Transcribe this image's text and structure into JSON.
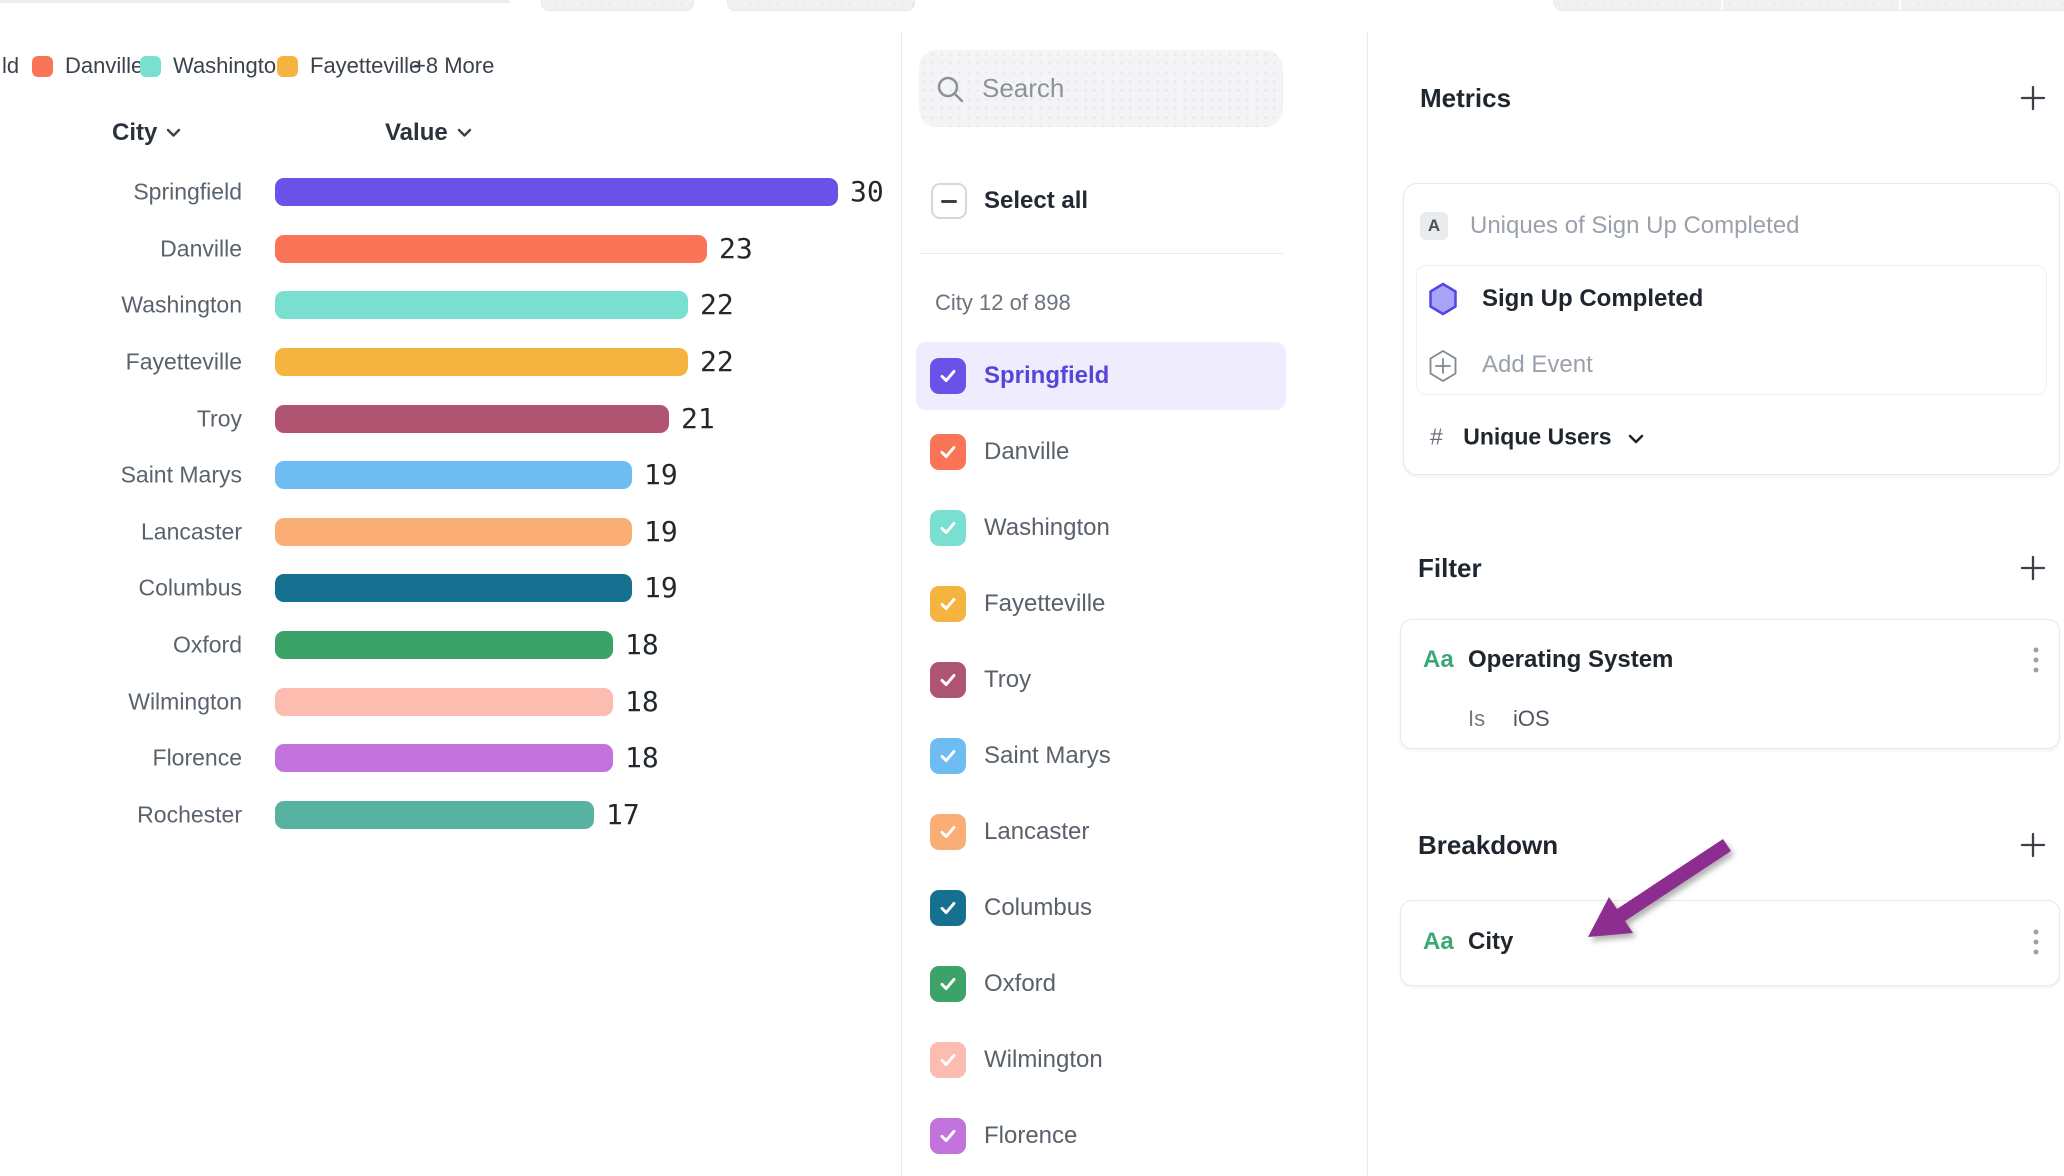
{
  "chart": {
    "legend": {
      "items": [
        {
          "label": "ld",
          "color": null
        },
        {
          "label": "Danville",
          "color": "#FA7557"
        },
        {
          "label": "Washington",
          "color": "#79DFD0"
        },
        {
          "label": "Fayetteville",
          "color": "#F5B43F"
        }
      ],
      "more_label": "+8 More"
    },
    "columns": {
      "city": "City",
      "value": "Value"
    }
  },
  "chart_data": {
    "type": "bar",
    "orientation": "horizontal",
    "title": "",
    "xlabel": "Value",
    "ylabel": "City",
    "xlim": [
      0,
      30
    ],
    "value_labels": true,
    "categories": [
      "Springfield",
      "Danville",
      "Washington",
      "Fayetteville",
      "Troy",
      "Saint Marys",
      "Lancaster",
      "Columbus",
      "Oxford",
      "Wilmington",
      "Florence",
      "Rochester"
    ],
    "values": [
      30,
      23,
      22,
      22,
      21,
      19,
      19,
      19,
      18,
      18,
      18,
      17
    ],
    "colors": [
      "#6A52E8",
      "#FA7557",
      "#79DFD0",
      "#F5B43F",
      "#B05571",
      "#6DBCF2",
      "#FBAD76",
      "#16708F",
      "#3CA368",
      "#FCBDB0",
      "#C274DC",
      "#57B2A1"
    ]
  },
  "city_selector": {
    "search_placeholder": "Search",
    "select_all_label": "Select all",
    "select_all_state": "indeterminate",
    "count_label": "City 12 of 898",
    "items": [
      {
        "label": "Springfield",
        "color": "#6A52E8",
        "checked": true,
        "highlighted": true
      },
      {
        "label": "Danville",
        "color": "#FA7557",
        "checked": true,
        "highlighted": false
      },
      {
        "label": "Washington",
        "color": "#79DFD0",
        "checked": true,
        "highlighted": false
      },
      {
        "label": "Fayetteville",
        "color": "#F5B43F",
        "checked": true,
        "highlighted": false
      },
      {
        "label": "Troy",
        "color": "#B05571",
        "checked": true,
        "highlighted": false
      },
      {
        "label": "Saint Marys",
        "color": "#6DBCF2",
        "checked": true,
        "highlighted": false
      },
      {
        "label": "Lancaster",
        "color": "#FBAD76",
        "checked": true,
        "highlighted": false
      },
      {
        "label": "Columbus",
        "color": "#16708F",
        "checked": true,
        "highlighted": false
      },
      {
        "label": "Oxford",
        "color": "#3CA368",
        "checked": true,
        "highlighted": false
      },
      {
        "label": "Wilmington",
        "color": "#FCBDB0",
        "checked": true,
        "highlighted": false
      },
      {
        "label": "Florence",
        "color": "#C274DC",
        "checked": true,
        "highlighted": false
      }
    ]
  },
  "inspector": {
    "metrics": {
      "title": "Metrics",
      "summary_badge": "A",
      "summary_text": "Uniques of Sign Up Completed",
      "event_name": "Sign Up Completed",
      "add_event_label": "Add Event",
      "measure_prefix": "#",
      "measure_label": "Unique Users"
    },
    "filter": {
      "title": "Filter",
      "property_badge": "Aa",
      "property_name": "Operating System",
      "operator": "Is",
      "value": "iOS"
    },
    "breakdown": {
      "title": "Breakdown",
      "property_badge": "Aa",
      "property_name": "City"
    }
  },
  "annotation": {
    "arrow_color": "#8E2D90"
  },
  "colors": {
    "accent_purple": "#6A52E8",
    "highlight_bg": "#EFECFD",
    "highlight_text": "#5646D8",
    "badge_green": "#3BA877"
  }
}
